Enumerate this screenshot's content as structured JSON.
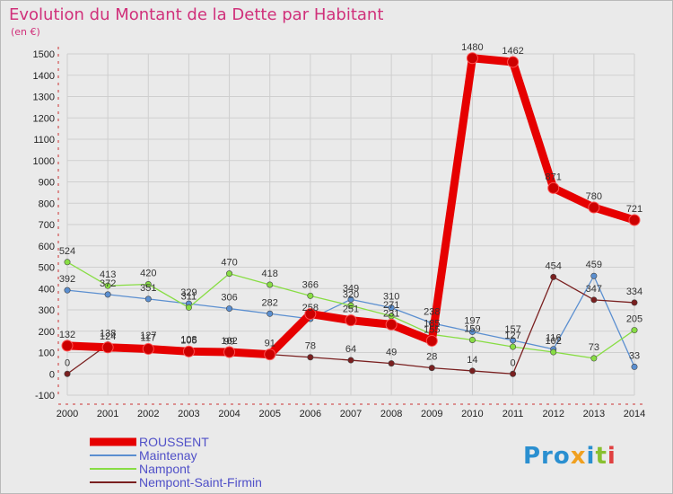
{
  "chart_data": {
    "type": "line",
    "title": "Evolution du Montant de la Dette par Habitant",
    "subtitle": "(en €)",
    "ylim": [
      -100,
      1500
    ],
    "yticks": [
      -100,
      0,
      100,
      200,
      300,
      400,
      500,
      600,
      700,
      800,
      900,
      1000,
      1100,
      1200,
      1300,
      1400,
      1500
    ],
    "x": [
      "2000",
      "2001",
      "2002",
      "2003",
      "2004",
      "2005",
      "2006",
      "2007",
      "2008",
      "2009",
      "2010",
      "2011",
      "2012",
      "2013",
      "2014"
    ],
    "grid": true,
    "legend_position": "bottom-left",
    "series": [
      {
        "name": "ROUSSENT",
        "color": "#e60000",
        "values": [
          132,
          124,
          117,
          105,
          102,
          91,
          281,
          251,
          231,
          155,
          1480,
          1462,
          871,
          780,
          721
        ],
        "labels": [
          "132",
          "124",
          "117",
          "105",
          "102",
          "91",
          "",
          "251",
          "231",
          "155",
          "1480",
          "1462",
          "871",
          "780",
          "721"
        ]
      },
      {
        "name": "Maintenay",
        "color": "#5b8fd0",
        "values": [
          392,
          372,
          351,
          329,
          306,
          282,
          258,
          349,
          310,
          238,
          197,
          157,
          116,
          459,
          33
        ],
        "labels": [
          "392",
          "372",
          "351",
          "329",
          "306",
          "282",
          "258",
          "349",
          "310",
          "238",
          "197",
          "157",
          "116",
          "459",
          "33"
        ]
      },
      {
        "name": "Nampont",
        "color": "#88dd44",
        "values": [
          524,
          413,
          420,
          311,
          470,
          418,
          366,
          320,
          271,
          185,
          159,
          127,
          102,
          73,
          205
        ],
        "labels": [
          "524",
          "413",
          "420",
          "311",
          "470",
          "418",
          "366",
          "320",
          "271",
          "185",
          "159",
          "127",
          "102",
          "73",
          "205"
        ]
      },
      {
        "name": "Nempont-Saint-Firmin",
        "color": "#7a2020",
        "values": [
          0,
          138,
          127,
          108,
          99,
          91,
          78,
          64,
          49,
          28,
          14,
          0,
          454,
          347,
          334
        ],
        "labels": [
          "0",
          "138",
          "127",
          "108",
          "99",
          "",
          "78",
          "64",
          "49",
          "28",
          "14",
          "0",
          "454",
          "347",
          "334"
        ]
      }
    ]
  },
  "logo": {
    "text": "Proxiti"
  }
}
